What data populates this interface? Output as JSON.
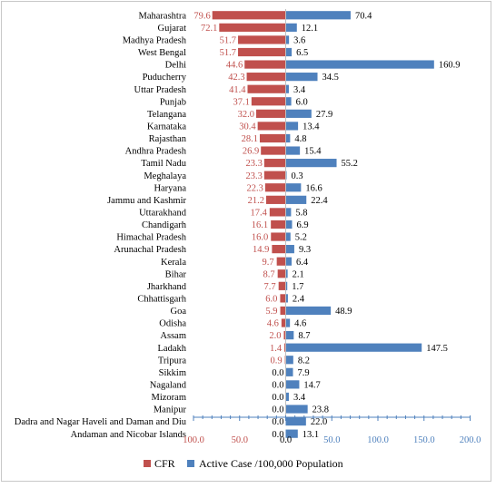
{
  "chart_data": {
    "type": "bar",
    "orientation": "horizontal-diverging",
    "categories": [
      "Maharashtra",
      "Gujarat",
      "Madhya Pradesh",
      "West Bengal",
      "Delhi",
      "Puducherry",
      "Uttar Pradesh",
      "Punjab",
      "Telangana",
      "Karnataka",
      "Rajasthan",
      "Andhra Pradesh",
      "Tamil Nadu",
      "Meghalaya",
      "Haryana",
      "Jammu and Kashmir",
      "Uttarakhand",
      "Chandigarh",
      "Himachal Pradesh",
      "Arunachal Pradesh",
      "Kerala",
      "Bihar",
      "Jharkhand",
      "Chhattisgarh",
      "Goa",
      "Odisha",
      "Assam",
      "Ladakh",
      "Tripura",
      "Sikkim",
      "Nagaland",
      "Mizoram",
      "Manipur",
      "Dadra and Nagar Haveli and Daman and Diu",
      "Andaman and Nicobar Islands"
    ],
    "series": [
      {
        "name": "CFR",
        "color": "#c0504d",
        "direction": "left",
        "values": [
          79.6,
          72.1,
          51.7,
          51.7,
          44.6,
          42.3,
          41.4,
          37.1,
          32.0,
          30.4,
          28.1,
          26.9,
          23.3,
          23.3,
          22.3,
          21.2,
          17.4,
          16.1,
          16.0,
          14.9,
          9.7,
          8.7,
          7.7,
          6.0,
          5.9,
          4.6,
          2.0,
          1.4,
          0.9,
          0.0,
          0.0,
          0.0,
          0.0,
          0.0,
          0.0
        ]
      },
      {
        "name": "Active Case /100,000 Population",
        "color": "#4f81bd",
        "direction": "right",
        "values": [
          70.4,
          12.1,
          3.6,
          6.5,
          160.9,
          34.5,
          3.4,
          6.0,
          27.9,
          13.4,
          4.8,
          15.4,
          55.2,
          0.3,
          16.6,
          22.4,
          5.8,
          6.9,
          5.2,
          9.3,
          6.4,
          2.1,
          1.7,
          2.4,
          48.9,
          4.6,
          8.7,
          147.5,
          8.2,
          7.9,
          14.7,
          3.4,
          23.8,
          22.0,
          13.1
        ]
      }
    ],
    "x_ticks": [
      "100.0",
      "50.0",
      "0.0",
      "50.0",
      "100.0",
      "150.0",
      "200.0"
    ],
    "xlim": [
      -100,
      200
    ],
    "legend": [
      "CFR",
      "Active Case /100,000 Population"
    ],
    "legend_position": "bottom-center"
  }
}
